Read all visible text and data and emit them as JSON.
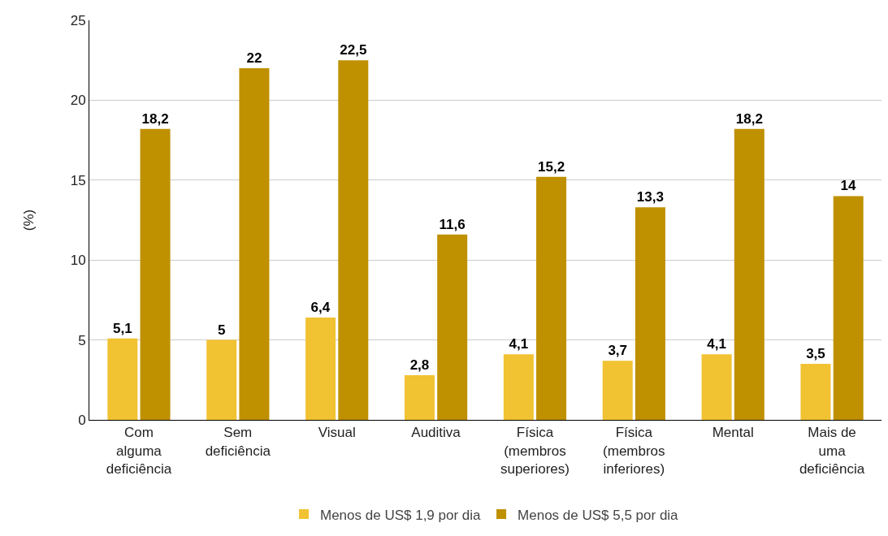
{
  "chart_data": {
    "type": "bar",
    "ylabel": "(%)",
    "categories": [
      "Com alguma deficiência",
      "Sem deficiência",
      "Visual",
      "Auditiva",
      "Física (membros superiores)",
      "Física (membros inferiores)",
      "Mental",
      "Mais de uma deficiência"
    ],
    "series": [
      {
        "name": "Menos de US$ 1,9 por dia",
        "color": "#f1c232",
        "values": [
          5.1,
          5,
          6.4,
          2.8,
          4.1,
          3.7,
          4.1,
          3.5
        ],
        "value_labels": [
          "5,1",
          "5",
          "6,4",
          "2,8",
          "4,1",
          "3,7",
          "4,1",
          "3,5"
        ]
      },
      {
        "name": "Menos de US$ 5,5 por dia",
        "color": "#bf9000",
        "values": [
          18.2,
          22,
          22.5,
          11.6,
          15.2,
          13.3,
          18.2,
          14
        ],
        "value_labels": [
          "18,2",
          "22",
          "22,5",
          "11,6",
          "15,2",
          "13,3",
          "18,2",
          "14"
        ]
      }
    ],
    "ylim": [
      0,
      25
    ],
    "yticks": [
      0,
      5,
      10,
      15,
      20,
      25
    ],
    "grid": "y",
    "legend": "bottom"
  }
}
